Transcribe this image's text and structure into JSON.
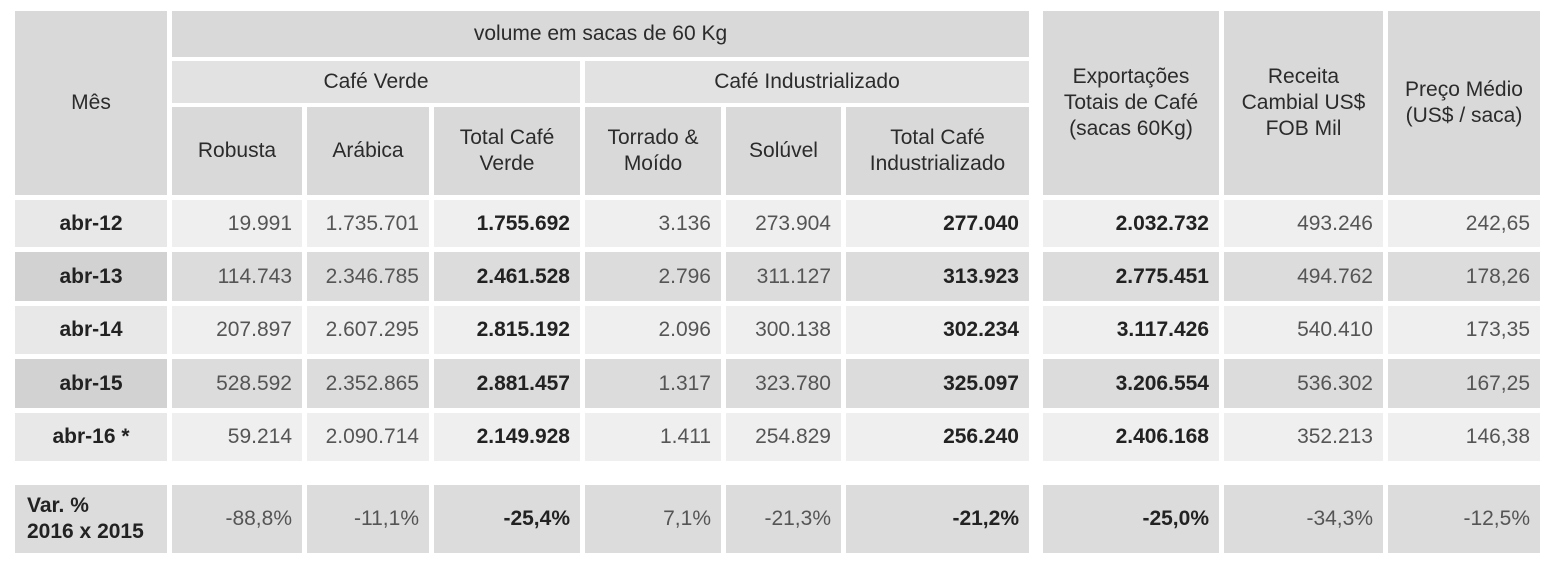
{
  "chart_data": {
    "type": "table",
    "header": {
      "mes": "Mês",
      "volume": "volume em sacas de 60 Kg",
      "cafe_verde": "Café Verde",
      "cafe_industrializado": "Café Industrializado",
      "robusta": "Robusta",
      "arabica": "Arábica",
      "total_verde": "Total Café Verde",
      "torrado": "Torrado & Moído",
      "soluvel": "Solúvel",
      "total_ind": "Total Café Industrializado",
      "exportacoes": "Exportações Totais de Café (sacas 60Kg)",
      "receita": "Receita Cambial US$ FOB Mil",
      "preco": "Preço Médio (US$ / saca)"
    },
    "rows": [
      {
        "mes": "abr-12",
        "robusta": "19.991",
        "arabica": "1.735.701",
        "total_verde": "1.755.692",
        "torrado": "3.136",
        "soluvel": "273.904",
        "total_ind": "277.040",
        "exportacoes": "2.032.732",
        "receita": "493.246",
        "preco": "242,65"
      },
      {
        "mes": "abr-13",
        "robusta": "114.743",
        "arabica": "2.346.785",
        "total_verde": "2.461.528",
        "torrado": "2.796",
        "soluvel": "311.127",
        "total_ind": "313.923",
        "exportacoes": "2.775.451",
        "receita": "494.762",
        "preco": "178,26"
      },
      {
        "mes": "abr-14",
        "robusta": "207.897",
        "arabica": "2.607.295",
        "total_verde": "2.815.192",
        "torrado": "2.096",
        "soluvel": "300.138",
        "total_ind": "302.234",
        "exportacoes": "3.117.426",
        "receita": "540.410",
        "preco": "173,35"
      },
      {
        "mes": "abr-15",
        "robusta": "528.592",
        "arabica": "2.352.865",
        "total_verde": "2.881.457",
        "torrado": "1.317",
        "soluvel": "323.780",
        "total_ind": "325.097",
        "exportacoes": "3.206.554",
        "receita": "536.302",
        "preco": "167,25"
      },
      {
        "mes": "abr-16 *",
        "robusta": "59.214",
        "arabica": "2.090.714",
        "total_verde": "2.149.928",
        "torrado": "1.411",
        "soluvel": "254.829",
        "total_ind": "256.240",
        "exportacoes": "2.406.168",
        "receita": "352.213",
        "preco": "146,38"
      }
    ],
    "variation": {
      "label_line1": "Var. %",
      "label_line2": "2016 x 2015",
      "robusta": "-88,8%",
      "arabica": "-11,1%",
      "total_verde": "-25,4%",
      "torrado": "7,1%",
      "soluvel": "-21,3%",
      "total_ind": "-21,2%",
      "exportacoes": "-25,0%",
      "receita": "-34,3%",
      "preco": "-12,5%"
    }
  }
}
